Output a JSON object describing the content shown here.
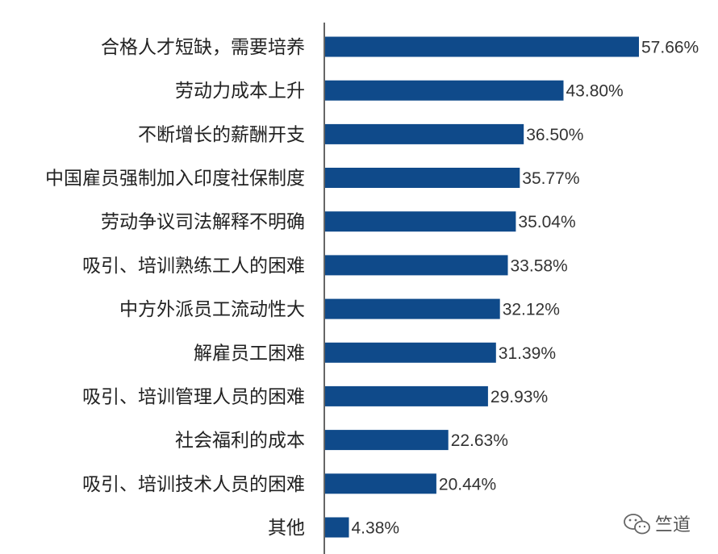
{
  "chart_data": {
    "type": "bar",
    "orientation": "horizontal",
    "categories": [
      "合格人才短缺，需要培养",
      "劳动力成本上升",
      "不断增长的薪酬开支",
      "中国雇员强制加入印度社保制度",
      "劳动争议司法解释不明确",
      "吸引、培训熟练工人的困难",
      "中方外派员工流动性大",
      "解雇员工困难",
      "吸引、培训管理人员的困难",
      "社会福利的成本",
      "吸引、培训技术人员的困难",
      "其他"
    ],
    "values": [
      57.66,
      43.8,
      36.5,
      35.77,
      35.04,
      33.58,
      32.12,
      31.39,
      29.93,
      22.63,
      20.44,
      4.38
    ],
    "value_labels": [
      "57.66%",
      "43.80%",
      "36.50%",
      "35.77%",
      "35.04%",
      "33.58%",
      "32.12%",
      "31.39%",
      "29.93%",
      "22.63%",
      "20.44%",
      "4.38%"
    ],
    "bar_color": "#0f4a8a",
    "axis_color": "#333333",
    "xlim": [
      0,
      57.66
    ],
    "grid": false,
    "legend": false
  },
  "watermark": {
    "text": "竺道",
    "icon": "wechat-icon"
  }
}
